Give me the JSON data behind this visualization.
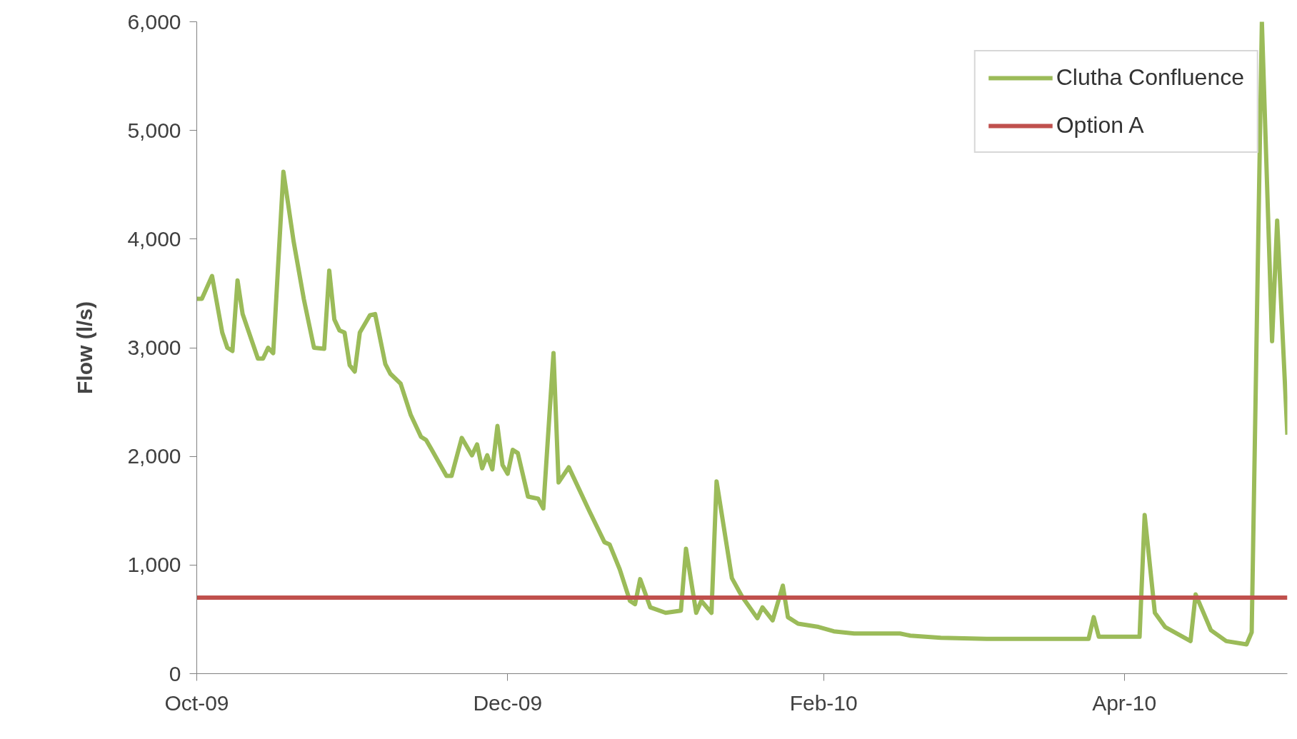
{
  "chart_data": {
    "type": "line",
    "ylabel": "Flow (l/s)",
    "x": [
      "2009-10-01",
      "2009-10-02",
      "2009-10-04",
      "2009-10-06",
      "2009-10-07",
      "2009-10-08",
      "2009-10-09",
      "2009-10-10",
      "2009-10-13",
      "2009-10-14",
      "2009-10-15",
      "2009-10-16",
      "2009-10-18",
      "2009-10-20",
      "2009-10-22",
      "2009-10-24",
      "2009-10-26",
      "2009-10-27",
      "2009-10-28",
      "2009-10-29",
      "2009-10-30",
      "2009-10-31",
      "2009-11-01",
      "2009-11-02",
      "2009-11-04",
      "2009-11-05",
      "2009-11-07",
      "2009-11-08",
      "2009-11-10",
      "2009-11-12",
      "2009-11-14",
      "2009-11-15",
      "2009-11-16",
      "2009-11-19",
      "2009-11-20",
      "2009-11-22",
      "2009-11-24",
      "2009-11-25",
      "2009-11-26",
      "2009-11-27",
      "2009-11-28",
      "2009-11-29",
      "2009-11-30",
      "2009-12-01",
      "2009-12-02",
      "2009-12-03",
      "2009-12-05",
      "2009-12-07",
      "2009-12-08",
      "2009-12-10",
      "2009-12-11",
      "2009-12-13",
      "2009-12-17",
      "2009-12-20",
      "2009-12-21",
      "2009-12-23",
      "2009-12-25",
      "2009-12-26",
      "2009-12-27",
      "2009-12-29",
      "2010-01-01",
      "2010-01-04",
      "2010-01-05",
      "2010-01-07",
      "2010-01-08",
      "2010-01-10",
      "2010-01-11",
      "2010-01-14",
      "2010-01-16",
      "2010-01-19",
      "2010-01-20",
      "2010-01-22",
      "2010-01-24",
      "2010-01-25",
      "2010-01-27",
      "2010-01-31",
      "2010-02-03",
      "2010-02-07",
      "2010-02-16",
      "2010-02-18",
      "2010-02-24",
      "2010-03-05",
      "2010-03-25",
      "2010-03-26",
      "2010-03-27",
      "2010-04-04",
      "2010-04-05",
      "2010-04-07",
      "2010-04-09",
      "2010-04-14",
      "2010-04-15",
      "2010-04-18",
      "2010-04-21",
      "2010-04-25",
      "2010-04-26",
      "2010-04-28",
      "2010-04-30",
      "2010-05-01",
      "2010-05-03"
    ],
    "series": [
      {
        "name": "Clutha Confluence",
        "color": "#9bbb59",
        "values": [
          3450,
          3450,
          3660,
          3140,
          3000,
          2970,
          3620,
          3310,
          2900,
          2900,
          3000,
          2950,
          4620,
          3980,
          3450,
          3000,
          2990,
          3710,
          3260,
          3160,
          3140,
          2840,
          2780,
          3140,
          3300,
          3310,
          2850,
          2760,
          2670,
          2380,
          2180,
          2150,
          2070,
          1820,
          1820,
          2170,
          2010,
          2110,
          1890,
          2010,
          1880,
          2280,
          1920,
          1840,
          2060,
          2030,
          1630,
          1610,
          1520,
          2950,
          1760,
          1900,
          1500,
          1210,
          1190,
          960,
          670,
          640,
          870,
          610,
          560,
          580,
          1150,
          560,
          670,
          560,
          1770,
          880,
          710,
          510,
          610,
          490,
          810,
          520,
          460,
          430,
          390,
          370,
          370,
          350,
          330,
          320,
          320,
          520,
          340,
          340,
          1460,
          560,
          430,
          300,
          730,
          400,
          300,
          270,
          380,
          6000,
          3060,
          4170,
          2200
        ]
      },
      {
        "name": "Option A",
        "color": "#c0504d",
        "type": "line",
        "x": [
          "2009-10-01",
          "2010-05-03"
        ],
        "values": [
          700,
          700
        ]
      }
    ],
    "xlim": [
      "2009-10-01",
      "2010-05-03"
    ],
    "xticks": [
      {
        "value": "2009-10-01",
        "label": "Oct-09"
      },
      {
        "value": "2009-12-01",
        "label": "Dec-09"
      },
      {
        "value": "2010-02-01",
        "label": "Feb-10"
      },
      {
        "value": "2010-04-01",
        "label": "Apr-10"
      }
    ],
    "ylim": [
      0,
      6000
    ],
    "yticks": [
      {
        "value": 0,
        "label": "0"
      },
      {
        "value": 1000,
        "label": "1,000"
      },
      {
        "value": 2000,
        "label": "2,000"
      },
      {
        "value": 3000,
        "label": "3,000"
      },
      {
        "value": 4000,
        "label": "4,000"
      },
      {
        "value": 5000,
        "label": "5,000"
      },
      {
        "value": 6000,
        "label": "6,000"
      }
    ],
    "grid": false,
    "legend": "top right",
    "marker": "none",
    "line_style": "solid"
  }
}
